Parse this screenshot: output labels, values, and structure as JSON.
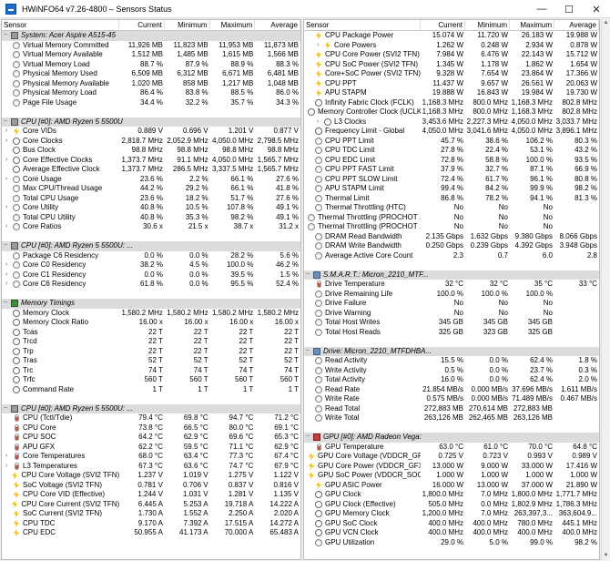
{
  "window": {
    "title": "HWiNFO64 v7.26-4800 – Sensors Status",
    "minimize": "—",
    "maximize": "☐",
    "close": "✕"
  },
  "columns": {
    "sensor": "Sensor",
    "current": "Current",
    "minimum": "Minimum",
    "maximum": "Maximum",
    "average": "Average"
  },
  "left_rows": [
    {
      "type": "group",
      "icon": "chip-icon",
      "label": "System: Acer Aspire A515-45"
    },
    {
      "type": "item",
      "icon": "gauge",
      "label": "Virtual Memory Committed",
      "cur": "11,926 MB",
      "min": "11,823 MB",
      "max": "11,953 MB",
      "avg": "11,873 MB"
    },
    {
      "type": "item",
      "icon": "gauge",
      "label": "Virtual Memory Available",
      "cur": "1,512 MB",
      "min": "1,485 MB",
      "max": "1,615 MB",
      "avg": "1,566 MB"
    },
    {
      "type": "item",
      "icon": "gauge",
      "label": "Virtual Memory Load",
      "cur": "88.7 %",
      "min": "87.9 %",
      "max": "88.9 %",
      "avg": "88.3 %"
    },
    {
      "type": "item",
      "icon": "gauge",
      "label": "Physical Memory Used",
      "cur": "6,509 MB",
      "min": "6,312 MB",
      "max": "6,671 MB",
      "avg": "6,481 MB"
    },
    {
      "type": "item",
      "icon": "gauge",
      "label": "Physical Memory Available",
      "cur": "1,020 MB",
      "min": "858 MB",
      "max": "1,217 MB",
      "avg": "1,048 MB"
    },
    {
      "type": "item",
      "icon": "gauge",
      "label": "Physical Memory Load",
      "cur": "86.4 %",
      "min": "83.8 %",
      "max": "88.5 %",
      "avg": "86.0 %"
    },
    {
      "type": "item",
      "icon": "gauge",
      "label": "Page File Usage",
      "cur": "34.4 %",
      "min": "32.2 %",
      "max": "35.7 %",
      "avg": "34.3 %"
    },
    {
      "type": "spacer"
    },
    {
      "type": "group",
      "icon": "chip-icon",
      "label": "CPU [#0]: AMD Ryzen 5 5500U"
    },
    {
      "type": "item",
      "icon": "bolt",
      "expand": true,
      "label": "Core VIDs",
      "cur": "0.889 V",
      "min": "0.696 V",
      "max": "1.201 V",
      "avg": "0.877 V"
    },
    {
      "type": "item",
      "icon": "clock",
      "expand": true,
      "label": "Core Clocks",
      "cur": "2,818.7 MHz",
      "min": "2,052.9 MHz",
      "max": "4,050.0 MHz",
      "avg": "2,798.5 MHz"
    },
    {
      "type": "item",
      "icon": "clock",
      "label": "Bus Clock",
      "cur": "98.8 MHz",
      "min": "98.8 MHz",
      "max": "98.8 MHz",
      "avg": "98.8 MHz"
    },
    {
      "type": "item",
      "icon": "clock",
      "expand": true,
      "label": "Core Effective Clocks",
      "cur": "1,373.7 MHz",
      "min": "91.1 MHz",
      "max": "4,050.0 MHz",
      "avg": "1,565.7 MHz"
    },
    {
      "type": "item",
      "icon": "clock",
      "label": "Average Effective Clock",
      "cur": "1,373.7 MHz",
      "min": "286.5 MHz",
      "max": "3,337.5 MHz",
      "avg": "1,565.7 MHz"
    },
    {
      "type": "item",
      "icon": "gauge",
      "expand": true,
      "label": "Core Usage",
      "cur": "23.6 %",
      "min": "2.2 %",
      "max": "66.1 %",
      "avg": "27.6 %"
    },
    {
      "type": "item",
      "icon": "gauge",
      "label": "Max CPU/Thread Usage",
      "cur": "44.2 %",
      "min": "29.2 %",
      "max": "66.1 %",
      "avg": "41.8 %"
    },
    {
      "type": "item",
      "icon": "gauge",
      "label": "Total CPU Usage",
      "cur": "23.6 %",
      "min": "18.2 %",
      "max": "51.7 %",
      "avg": "27.6 %"
    },
    {
      "type": "item",
      "icon": "gauge",
      "expand": true,
      "label": "Core Utility",
      "cur": "40.8 %",
      "min": "10.5 %",
      "max": "107.8 %",
      "avg": "49.1 %"
    },
    {
      "type": "item",
      "icon": "gauge",
      "label": "Total CPU Utility",
      "cur": "40.8 %",
      "min": "35.3 %",
      "max": "98.2 %",
      "avg": "49.1 %"
    },
    {
      "type": "item",
      "icon": "gauge",
      "expand": true,
      "label": "Core Ratios",
      "cur": "30.6 x",
      "min": "21.5 x",
      "max": "38.7 x",
      "avg": "31.2 x"
    },
    {
      "type": "spacer"
    },
    {
      "type": "group",
      "icon": "chip-icon",
      "label": "CPU [#0]: AMD Ryzen 5 5500U: ..."
    },
    {
      "type": "item",
      "icon": "gauge",
      "label": "Package C6 Residency",
      "cur": "0.0 %",
      "min": "0.0 %",
      "max": "28.2 %",
      "avg": "5.6 %"
    },
    {
      "type": "item",
      "icon": "gauge",
      "expand": true,
      "label": "Core C0 Residency",
      "cur": "38.2 %",
      "min": "4.5 %",
      "max": "100.0 %",
      "avg": "46.2 %"
    },
    {
      "type": "item",
      "icon": "gauge",
      "expand": true,
      "label": "Core C1 Residency",
      "cur": "0.0 %",
      "min": "0.0 %",
      "max": "39.5 %",
      "avg": "1.5 %"
    },
    {
      "type": "item",
      "icon": "gauge",
      "expand": true,
      "label": "Core C6 Residency",
      "cur": "61.8 %",
      "min": "0.0 %",
      "max": "95.5 %",
      "avg": "52.4 %"
    },
    {
      "type": "spacer"
    },
    {
      "type": "group",
      "icon": "mem-icon",
      "label": "Memory Timings"
    },
    {
      "type": "item",
      "icon": "clock",
      "label": "Memory Clock",
      "cur": "1,580.2 MHz",
      "min": "1,580.2 MHz",
      "max": "1,580.2 MHz",
      "avg": "1,580.2 MHz"
    },
    {
      "type": "item",
      "icon": "clock",
      "label": "Memory Clock Ratio",
      "cur": "16.00 x",
      "min": "16.00 x",
      "max": "16.00 x",
      "avg": "16.00 x"
    },
    {
      "type": "item",
      "icon": "clock",
      "label": "Tcas",
      "cur": "22 T",
      "min": "22 T",
      "max": "22 T",
      "avg": "22 T"
    },
    {
      "type": "item",
      "icon": "clock",
      "label": "Trcd",
      "cur": "22 T",
      "min": "22 T",
      "max": "22 T",
      "avg": "22 T"
    },
    {
      "type": "item",
      "icon": "clock",
      "label": "Trp",
      "cur": "22 T",
      "min": "22 T",
      "max": "22 T",
      "avg": "22 T"
    },
    {
      "type": "item",
      "icon": "clock",
      "label": "Tras",
      "cur": "52 T",
      "min": "52 T",
      "max": "52 T",
      "avg": "52 T"
    },
    {
      "type": "item",
      "icon": "clock",
      "label": "Trc",
      "cur": "74 T",
      "min": "74 T",
      "max": "74 T",
      "avg": "74 T"
    },
    {
      "type": "item",
      "icon": "clock",
      "label": "Trfc",
      "cur": "560 T",
      "min": "560 T",
      "max": "560 T",
      "avg": "560 T"
    },
    {
      "type": "item",
      "icon": "clock",
      "label": "Command Rate",
      "cur": "1 T",
      "min": "1 T",
      "max": "1 T",
      "avg": "1 T"
    },
    {
      "type": "spacer"
    },
    {
      "type": "group",
      "icon": "chip-icon",
      "label": "CPU [#0]: AMD Ryzen 5 5500U: ..."
    },
    {
      "type": "item",
      "icon": "therm",
      "label": "CPU (Tctl/Tdie)",
      "cur": "79.4 °C",
      "min": "69.8 °C",
      "max": "94.7 °C",
      "avg": "71.2 °C"
    },
    {
      "type": "item",
      "icon": "therm",
      "label": "CPU Core",
      "cur": "73.8 °C",
      "min": "66.5 °C",
      "max": "80.0 °C",
      "avg": "69.1 °C"
    },
    {
      "type": "item",
      "icon": "therm",
      "label": "CPU SOC",
      "cur": "64.2 °C",
      "min": "62.9 °C",
      "max": "69.6 °C",
      "avg": "65.3 °C"
    },
    {
      "type": "item",
      "icon": "therm",
      "label": "APU GFX",
      "cur": "62.2 °C",
      "min": "59.5 °C",
      "max": "71.1 °C",
      "avg": "62.9 °C"
    },
    {
      "type": "item",
      "icon": "therm",
      "expand": true,
      "label": "Core Temperatures",
      "cur": "68.0 °C",
      "min": "63.4 °C",
      "max": "77.3 °C",
      "avg": "67.4 °C"
    },
    {
      "type": "item",
      "icon": "therm",
      "expand": true,
      "label": "L3 Temperatures",
      "cur": "67.3 °C",
      "min": "63.6 °C",
      "max": "74.7 °C",
      "avg": "67.9 °C"
    },
    {
      "type": "item",
      "icon": "bolt",
      "label": "CPU Core Voltage (SVI2 TFN)",
      "cur": "1.237 V",
      "min": "1.019 V",
      "max": "1.275 V",
      "avg": "1.122 V"
    },
    {
      "type": "item",
      "icon": "bolt",
      "label": "SoC Voltage (SVI2 TFN)",
      "cur": "0.781 V",
      "min": "0.706 V",
      "max": "0.837 V",
      "avg": "0.816 V"
    },
    {
      "type": "item",
      "icon": "bolt",
      "label": "CPU Core VID (Effective)",
      "cur": "1.244 V",
      "min": "1.031 V",
      "max": "1.281 V",
      "avg": "1.135 V"
    },
    {
      "type": "item",
      "icon": "bolt",
      "label": "CPU Core Current (SVI2 TFN)",
      "cur": "6.445 A",
      "min": "5.253 A",
      "max": "19.718 A",
      "avg": "14.222 A"
    },
    {
      "type": "item",
      "icon": "bolt",
      "label": "SoC Current (SVI2 TFN)",
      "cur": "1.730 A",
      "min": "1.552 A",
      "max": "2.250 A",
      "avg": "2.020 A"
    },
    {
      "type": "item",
      "icon": "bolt",
      "label": "CPU TDC",
      "cur": "9.170 A",
      "min": "7.392 A",
      "max": "17.515 A",
      "avg": "14.272 A"
    },
    {
      "type": "item",
      "icon": "bolt",
      "label": "CPU EDC",
      "cur": "50.955 A",
      "min": "41.173 A",
      "max": "70.000 A",
      "avg": "65.483 A"
    }
  ],
  "right_rows": [
    {
      "type": "item",
      "icon": "bolt",
      "label": "CPU Package Power",
      "cur": "15.074 W",
      "min": "11.720 W",
      "max": "26.183 W",
      "avg": "19.988 W"
    },
    {
      "type": "item",
      "icon": "bolt",
      "expand": true,
      "indent": 1,
      "label": "Core Powers",
      "cur": "1.262 W",
      "min": "0.248 W",
      "max": "2.934 W",
      "avg": "0.878 W"
    },
    {
      "type": "item",
      "icon": "bolt",
      "label": "CPU Core Power (SVI2 TFN)",
      "cur": "7.984 W",
      "min": "6.476 W",
      "max": "22.143 W",
      "avg": "15.712 W"
    },
    {
      "type": "item",
      "icon": "bolt",
      "label": "CPU SoC Power (SVI2 TFN)",
      "cur": "1.345 W",
      "min": "1.178 W",
      "max": "1.862 W",
      "avg": "1.654 W"
    },
    {
      "type": "item",
      "icon": "bolt",
      "label": "Core+SoC Power (SVI2 TFN)",
      "cur": "9.328 W",
      "min": "7.654 W",
      "max": "23.864 W",
      "avg": "17.366 W"
    },
    {
      "type": "item",
      "icon": "bolt",
      "label": "CPU PPT",
      "cur": "11.437 W",
      "min": "9.657 W",
      "max": "26.561 W",
      "avg": "20.063 W"
    },
    {
      "type": "item",
      "icon": "bolt",
      "label": "APU STAPM",
      "cur": "19.888 W",
      "min": "16.843 W",
      "max": "19.984 W",
      "avg": "19.730 W"
    },
    {
      "type": "item",
      "icon": "clock",
      "label": "Infinity Fabric Clock (FCLK)",
      "cur": "1,168.3 MHz",
      "min": "800.0 MHz",
      "max": "1,168.3 MHz",
      "avg": "802.8 MHz"
    },
    {
      "type": "item",
      "icon": "clock",
      "label": "Memory Controller Clock (UCLK)",
      "cur": "1,168.3 MHz",
      "min": "800.0 MHz",
      "max": "1,168.3 MHz",
      "avg": "802.8 MHz"
    },
    {
      "type": "item",
      "icon": "clock",
      "expand": true,
      "indent": 1,
      "label": "L3 Clocks",
      "cur": "3,453.6 MHz",
      "min": "2,227.3 MHz",
      "max": "4,050.0 MHz",
      "avg": "3,033.7 MHz"
    },
    {
      "type": "item",
      "icon": "clock",
      "label": "Frequency Limit - Global",
      "cur": "4,050.0 MHz",
      "min": "3,041.6 MHz",
      "max": "4,050.0 MHz",
      "avg": "3,896.1 MHz"
    },
    {
      "type": "item",
      "icon": "gauge",
      "label": "CPU PPT Limit",
      "cur": "45.7 %",
      "min": "38.6 %",
      "max": "106.2 %",
      "avg": "80.3 %"
    },
    {
      "type": "item",
      "icon": "gauge",
      "label": "CPU TDC Limit",
      "cur": "27.8 %",
      "min": "22.4 %",
      "max": "53.1 %",
      "avg": "43.2 %"
    },
    {
      "type": "item",
      "icon": "gauge",
      "label": "CPU EDC Limit",
      "cur": "72.8 %",
      "min": "58.8 %",
      "max": "100.0 %",
      "avg": "93.5 %"
    },
    {
      "type": "item",
      "icon": "gauge",
      "label": "CPU PPT FAST Limit",
      "cur": "37.9 %",
      "min": "32.7 %",
      "max": "87.1 %",
      "avg": "66.9 %"
    },
    {
      "type": "item",
      "icon": "gauge",
      "label": "CPU PPT SLOW Limit",
      "cur": "72.4 %",
      "min": "61.7 %",
      "max": "96.1 %",
      "avg": "80.8 %"
    },
    {
      "type": "item",
      "icon": "gauge",
      "label": "APU STAPM Limit",
      "cur": "99.4 %",
      "min": "84.2 %",
      "max": "99.9 %",
      "avg": "98.2 %"
    },
    {
      "type": "item",
      "icon": "gauge",
      "label": "Thermal Limit",
      "cur": "86.8 %",
      "min": "78.2 %",
      "max": "94.1 %",
      "avg": "81.3 %"
    },
    {
      "type": "item",
      "icon": "gauge",
      "label": "Thermal Throttling (HTC)",
      "cur": "No",
      "min": "No",
      "max": "No",
      "avg": ""
    },
    {
      "type": "item",
      "icon": "gauge",
      "label": "Thermal Throttling (PROCHOT ...",
      "cur": "No",
      "min": "No",
      "max": "No",
      "avg": ""
    },
    {
      "type": "item",
      "icon": "gauge",
      "label": "Thermal Throttling (PROCHOT ...",
      "cur": "No",
      "min": "No",
      "max": "No",
      "avg": ""
    },
    {
      "type": "item",
      "icon": "gauge",
      "label": "DRAM Read Bandwidth",
      "cur": "2.135 Gbps",
      "min": "1.632 Gbps",
      "max": "9.380 Gbps",
      "avg": "8.066 Gbps"
    },
    {
      "type": "item",
      "icon": "gauge",
      "label": "DRAM Write Bandwidth",
      "cur": "0.250 Gbps",
      "min": "0.239 Gbps",
      "max": "4.392 Gbps",
      "avg": "3.948 Gbps"
    },
    {
      "type": "item",
      "icon": "gauge",
      "label": "Average Active Core Count",
      "cur": "2.3",
      "min": "0.7",
      "max": "6.0",
      "avg": "2.8"
    },
    {
      "type": "spacer"
    },
    {
      "type": "group",
      "icon": "disk-icon",
      "label": "S.M.A.R.T.: Micron_2210_MTF..."
    },
    {
      "type": "item",
      "icon": "therm",
      "label": "Drive Temperature",
      "cur": "32 °C",
      "min": "32 °C",
      "max": "35 °C",
      "avg": "33 °C"
    },
    {
      "type": "item",
      "icon": "gauge",
      "label": "Drive Remaining Life",
      "cur": "100.0 %",
      "min": "100.0 %",
      "max": "100.0 %",
      "avg": ""
    },
    {
      "type": "item",
      "icon": "gauge",
      "label": "Drive Failure",
      "cur": "No",
      "min": "No",
      "max": "No",
      "avg": ""
    },
    {
      "type": "item",
      "icon": "gauge",
      "label": "Drive Warning",
      "cur": "No",
      "min": "No",
      "max": "No",
      "avg": ""
    },
    {
      "type": "item",
      "icon": "gauge",
      "label": "Total Host Writes",
      "cur": "345 GB",
      "min": "345 GB",
      "max": "345 GB",
      "avg": ""
    },
    {
      "type": "item",
      "icon": "gauge",
      "label": "Total Host Reads",
      "cur": "325 GB",
      "min": "323 GB",
      "max": "325 GB",
      "avg": ""
    },
    {
      "type": "spacer"
    },
    {
      "type": "group",
      "icon": "disk-icon",
      "label": "Drive: Micron_2210_MTFDHBA..."
    },
    {
      "type": "item",
      "icon": "gauge",
      "label": "Read Activity",
      "cur": "15.5 %",
      "min": "0.0 %",
      "max": "62.4 %",
      "avg": "1.8 %"
    },
    {
      "type": "item",
      "icon": "gauge",
      "label": "Write Activity",
      "cur": "0.5 %",
      "min": "0.0 %",
      "max": "23.7 %",
      "avg": "0.3 %"
    },
    {
      "type": "item",
      "icon": "gauge",
      "label": "Total Activity",
      "cur": "16.0 %",
      "min": "0.0 %",
      "max": "62.4 %",
      "avg": "2.0 %"
    },
    {
      "type": "item",
      "icon": "gauge",
      "label": "Read Rate",
      "cur": "21.854 MB/s",
      "min": "0.000 MB/s",
      "max": "37.696 MB/s",
      "avg": "1.611 MB/s"
    },
    {
      "type": "item",
      "icon": "gauge",
      "label": "Write Rate",
      "cur": "0.575 MB/s",
      "min": "0.000 MB/s",
      "max": "71.489 MB/s",
      "avg": "0.467 MB/s"
    },
    {
      "type": "item",
      "icon": "gauge",
      "label": "Read Total",
      "cur": "272,883 MB",
      "min": "270,614 MB",
      "max": "272,883 MB",
      "avg": ""
    },
    {
      "type": "item",
      "icon": "gauge",
      "label": "Write Total",
      "cur": "263,126 MB",
      "min": "262,465 MB",
      "max": "263,126 MB",
      "avg": ""
    },
    {
      "type": "spacer"
    },
    {
      "type": "group",
      "icon": "gpu-icon",
      "label": "GPU [#0]: AMD Radeon Vega:"
    },
    {
      "type": "item",
      "icon": "therm",
      "label": "GPU Temperature",
      "cur": "63.0 °C",
      "min": "61.0 °C",
      "max": "70.0 °C",
      "avg": "64.8 °C"
    },
    {
      "type": "item",
      "icon": "bolt",
      "label": "GPU Core Voltage (VDDCR_GFX)",
      "cur": "0.725 V",
      "min": "0.723 V",
      "max": "0.993 V",
      "avg": "0.989 V"
    },
    {
      "type": "item",
      "icon": "bolt",
      "label": "GPU Core Power (VDDCR_GFX)",
      "cur": "13.000 W",
      "min": "9.000 W",
      "max": "33.000 W",
      "avg": "17.416 W"
    },
    {
      "type": "item",
      "icon": "bolt",
      "label": "GPU SoC Power (VDDCR_SOC)",
      "cur": "1.000 W",
      "min": "1.000 W",
      "max": "1.000 W",
      "avg": "1.000 W"
    },
    {
      "type": "item",
      "icon": "bolt",
      "label": "GPU ASIC Power",
      "cur": "16.000 W",
      "min": "13.000 W",
      "max": "37.000 W",
      "avg": "21.890 W"
    },
    {
      "type": "item",
      "icon": "clock",
      "label": "GPU Clock",
      "cur": "1,800.0 MHz",
      "min": "7.0 MHz",
      "max": "1,800.0 MHz",
      "avg": "1,771.7 MHz"
    },
    {
      "type": "item",
      "icon": "clock",
      "label": "GPU Clock (Effective)",
      "cur": "505.0 MHz",
      "min": "0.0 MHz",
      "max": "1,802.9 MHz",
      "avg": "1,786.3 MHz"
    },
    {
      "type": "item",
      "icon": "clock",
      "label": "GPU Memory Clock",
      "cur": "1,200.0 MHz",
      "min": "7.0 MHz",
      "max": "263,397,3...",
      "avg": "363,604.9..."
    },
    {
      "type": "item",
      "icon": "clock",
      "label": "GPU SoC Clock",
      "cur": "400.0 MHz",
      "min": "400.0 MHz",
      "max": "780.0 MHz",
      "avg": "445.1 MHz"
    },
    {
      "type": "item",
      "icon": "clock",
      "label": "GPU VCN Clock",
      "cur": "400.0 MHz",
      "min": "400.0 MHz",
      "max": "400.0 MHz",
      "avg": "400.0 MHz"
    },
    {
      "type": "item",
      "icon": "gauge",
      "label": "GPU Utilization",
      "cur": "29.0 %",
      "min": "5.0 %",
      "max": "99.0 %",
      "avg": "98.2 %"
    }
  ]
}
